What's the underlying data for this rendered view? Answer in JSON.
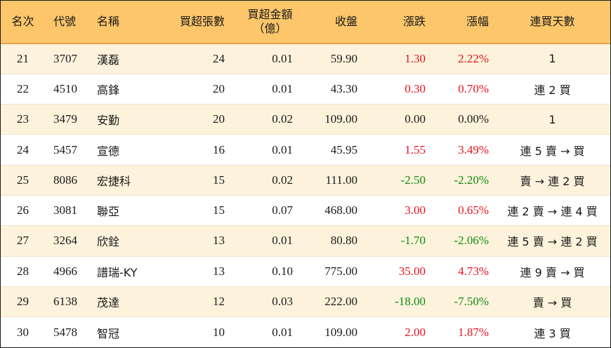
{
  "headers": {
    "rank": "名次",
    "code": "代號",
    "name": "名稱",
    "buy_qty": "買超張數",
    "buy_amount_line1": "買超金額",
    "buy_amount_line2": "（億）",
    "close": "收盤",
    "change": "漲跌",
    "change_pct": "漲幅",
    "streak": "連買天數"
  },
  "rows": [
    {
      "rank": "21",
      "code": "3707",
      "name": "漢磊",
      "buy_qty": "24",
      "buy_amount": "0.01",
      "close": "59.90",
      "change": "1.30",
      "change_pct": "2.22%",
      "direction": "up",
      "streak": "1"
    },
    {
      "rank": "22",
      "code": "4510",
      "name": "高鋒",
      "buy_qty": "20",
      "buy_amount": "0.01",
      "close": "43.30",
      "change": "0.30",
      "change_pct": "0.70%",
      "direction": "up",
      "streak": "連 2 買"
    },
    {
      "rank": "23",
      "code": "3479",
      "name": "安勤",
      "buy_qty": "20",
      "buy_amount": "0.02",
      "close": "109.00",
      "change": "0.00",
      "change_pct": "0.00%",
      "direction": "flat",
      "streak": "1"
    },
    {
      "rank": "24",
      "code": "5457",
      "name": "宣德",
      "buy_qty": "16",
      "buy_amount": "0.01",
      "close": "45.95",
      "change": "1.55",
      "change_pct": "3.49%",
      "direction": "up",
      "streak": "連 5 賣 → 買"
    },
    {
      "rank": "25",
      "code": "8086",
      "name": "宏捷科",
      "buy_qty": "15",
      "buy_amount": "0.02",
      "close": "111.00",
      "change": "-2.50",
      "change_pct": "-2.20%",
      "direction": "down",
      "streak": "賣 → 連 2 買"
    },
    {
      "rank": "26",
      "code": "3081",
      "name": "聯亞",
      "buy_qty": "15",
      "buy_amount": "0.07",
      "close": "468.00",
      "change": "3.00",
      "change_pct": "0.65%",
      "direction": "up",
      "streak": "連 2 賣 → 連 4 買"
    },
    {
      "rank": "27",
      "code": "3264",
      "name": "欣銓",
      "buy_qty": "13",
      "buy_amount": "0.01",
      "close": "80.80",
      "change": "-1.70",
      "change_pct": "-2.06%",
      "direction": "down",
      "streak": "連 5 賣 → 連 2 買"
    },
    {
      "rank": "28",
      "code": "4966",
      "name": "譜瑞-KY",
      "buy_qty": "13",
      "buy_amount": "0.10",
      "close": "775.00",
      "change": "35.00",
      "change_pct": "4.73%",
      "direction": "up",
      "streak": "連 9 賣 → 買"
    },
    {
      "rank": "29",
      "code": "6138",
      "name": "茂達",
      "buy_qty": "12",
      "buy_amount": "0.03",
      "close": "222.00",
      "change": "-18.00",
      "change_pct": "-7.50%",
      "direction": "down",
      "streak": "賣 → 買"
    },
    {
      "rank": "30",
      "code": "5478",
      "name": "智冠",
      "buy_qty": "10",
      "buy_amount": "0.01",
      "close": "109.00",
      "change": "2.00",
      "change_pct": "1.87%",
      "direction": "up",
      "streak": "連 3 買"
    }
  ],
  "colors": {
    "header_bg": "#fdc66a",
    "row_alt_bg": "#fdf3dc",
    "up": "#e3141e",
    "down": "#118a11",
    "flat": "#1a1a1a"
  }
}
